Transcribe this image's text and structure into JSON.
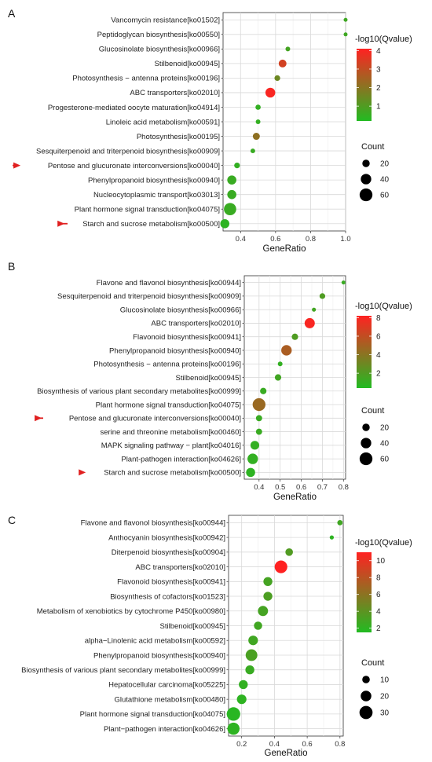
{
  "chart_data": [
    {
      "type": "scatter",
      "panel": "A",
      "xlabel": "GeneRatio",
      "xticks": [
        0.4,
        0.6,
        0.8,
        1.0
      ],
      "xtick_labels": [
        "0.4",
        "0.6",
        "0.8",
        "1.0"
      ],
      "xlim": [
        0.3,
        1.0
      ],
      "grid": true,
      "legend_position": "right",
      "color_legend": {
        "title": "-log10(Qvalue)",
        "range": [
          0.2,
          4.1
        ],
        "ticks": [
          1,
          2,
          3,
          4
        ],
        "low_color": "#22bb22",
        "high_color": "#ff2222"
      },
      "size_legend": {
        "title": "Count",
        "values": [
          20,
          40,
          60
        ],
        "max_value": 65
      },
      "categories": [
        "Vancomycin resistance[ko01502]",
        "Peptidoglycan biosynthesis[ko00550]",
        "Glucosinolate biosynthesis[ko00966]",
        "Stilbenoid[ko00945]",
        "Photosynthesis − antenna proteins[ko00196]",
        "ABC transporters[ko02010]",
        "Progesterone-mediated oocyte maturation[ko04914]",
        "Linoleic acid metabolism[ko00591]",
        "Photosynthesis[ko00195]",
        "Sesquiterpenoid and triterpenoid biosynthesis[ko00909]",
        "Pentose and glucuronate interconversions[ko00040]",
        "Phenylpropanoid biosynthesis[ko00940]",
        "Nucleocytoplasmic transport[ko03013]",
        "Plant hormone signal transduction[ko04075]",
        "Starch and sucrose metabolism[ko00500]"
      ],
      "gene_ratio": [
        1.0,
        1.0,
        0.67,
        0.64,
        0.61,
        0.57,
        0.5,
        0.5,
        0.49,
        0.47,
        0.38,
        0.35,
        0.35,
        0.34,
        0.31
      ],
      "count": [
        2,
        2,
        8,
        22,
        12,
        35,
        10,
        8,
        18,
        8,
        12,
        30,
        30,
        55,
        30
      ],
      "neg_log10_q": [
        0.7,
        0.7,
        0.8,
        3.3,
        1.5,
        4.0,
        0.5,
        0.5,
        2.1,
        0.6,
        0.5,
        0.6,
        0.6,
        0.6,
        0.4
      ],
      "arrows": [
        "Pentose and glucuronate interconversions[ko00040]",
        "Starch and sucrose metabolism[ko00500]"
      ]
    },
    {
      "type": "scatter",
      "panel": "B",
      "xlabel": "GeneRatio",
      "xticks": [
        0.4,
        0.5,
        0.6,
        0.7,
        0.8
      ],
      "xtick_labels": [
        "0.4",
        "0.5",
        "0.6",
        "0.7",
        "0.8"
      ],
      "xlim": [
        0.33,
        0.81
      ],
      "grid": true,
      "legend_position": "right",
      "color_legend": {
        "title": "-log10(Qvalue)",
        "range": [
          0.4,
          8.2
        ],
        "ticks": [
          2,
          4,
          6,
          8
        ],
        "low_color": "#22bb22",
        "high_color": "#ff2222"
      },
      "size_legend": {
        "title": "Count",
        "values": [
          20,
          40,
          60
        ],
        "max_value": 65
      },
      "categories": [
        "Flavone and flavonol biosynthesis[ko00944]",
        "Sesquiterpenoid and triterpenoid biosynthesis[ko00909]",
        "Glucosinolate biosynthesis[ko00966]",
        "ABC transporters[ko02010]",
        "Flavonoid biosynthesis[ko00941]",
        "Phenylpropanoid biosynthesis[ko00940]",
        "Photosynthesis − antenna proteins[ko00196]",
        "Stilbenoid[ko00945]",
        "Biosynthesis of various plant secondary metabolites[ko00999]",
        "Plant hormone signal transduction[ko04075]",
        "Pentose and glucuronate interconversions[ko00040]",
        "serine and threonine metabolism[ko00460]",
        "MAPK signaling pathway − plant[ko04016]",
        "Plant-pathogen interaction[ko04626]",
        "Starch and sucrose metabolism[ko00500]"
      ],
      "gene_ratio": [
        0.8,
        0.7,
        0.66,
        0.64,
        0.57,
        0.53,
        0.5,
        0.49,
        0.42,
        0.4,
        0.4,
        0.4,
        0.38,
        0.37,
        0.36
      ],
      "count": [
        2,
        12,
        6,
        38,
        15,
        40,
        8,
        15,
        15,
        60,
        14,
        14,
        28,
        40,
        30
      ],
      "neg_log10_q": [
        1.2,
        2.0,
        1.5,
        8.0,
        2.0,
        5.2,
        1.0,
        1.5,
        1.2,
        4.6,
        1.2,
        1.2,
        1.0,
        1.0,
        0.8
      ],
      "arrows": [
        "Pentose and glucuronate interconversions[ko00040]",
        "Starch and sucrose metabolism[ko00500]"
      ]
    },
    {
      "type": "scatter",
      "panel": "C",
      "xlabel": "GeneRatio",
      "xticks": [
        0.2,
        0.4,
        0.6,
        0.8
      ],
      "xtick_labels": [
        "0.2",
        "0.4",
        "0.6",
        "0.8"
      ],
      "xlim": [
        0.12,
        0.82
      ],
      "grid": true,
      "legend_position": "right",
      "color_legend": {
        "title": "-log10(Qvalue)",
        "range": [
          1.5,
          11.0
        ],
        "ticks": [
          2,
          4,
          6,
          8,
          10
        ],
        "low_color": "#22bb22",
        "high_color": "#ff2222"
      },
      "size_legend": {
        "title": "Count",
        "values": [
          10,
          20,
          30
        ],
        "max_value": 35
      },
      "categories": [
        "Flavone and flavonol biosynthesis[ko00944]",
        "Anthocyanin biosynthesis[ko00942]",
        "Diterpenoid biosynthesis[ko00904]",
        "ABC transporters[ko02010]",
        "Flavonoid biosynthesis[ko00941]",
        "Biosynthesis of cofactors[ko01523]",
        "Metabolism of xenobiotics by cytochrome P450[ko00980]",
        "Stilbenoid[ko00945]",
        "alpha−Linolenic acid metabolism[ko00592]",
        "Phenylpropanoid biosynthesis[ko00940]",
        "Biosynthesis of various plant secondary metabolites[ko00999]",
        "Hepatocellular carcinoma[ko05225]",
        "Glutathione metabolism[ko00480]",
        "Plant hormone signal transduction[ko04075]",
        "Plant−pathogen interaction[ko04626]"
      ],
      "gene_ratio": [
        0.8,
        0.75,
        0.49,
        0.44,
        0.36,
        0.36,
        0.33,
        0.3,
        0.27,
        0.26,
        0.25,
        0.21,
        0.2,
        0.15,
        0.15
      ],
      "count": [
        5,
        3,
        10,
        28,
        14,
        14,
        18,
        12,
        16,
        24,
        14,
        14,
        16,
        32,
        26
      ],
      "neg_log10_q": [
        2.8,
        2.0,
        3.5,
        11.0,
        3.0,
        3.3,
        3.0,
        2.8,
        2.8,
        3.2,
        2.5,
        2.2,
        2.0,
        1.8,
        2.0
      ],
      "arrows": []
    }
  ]
}
